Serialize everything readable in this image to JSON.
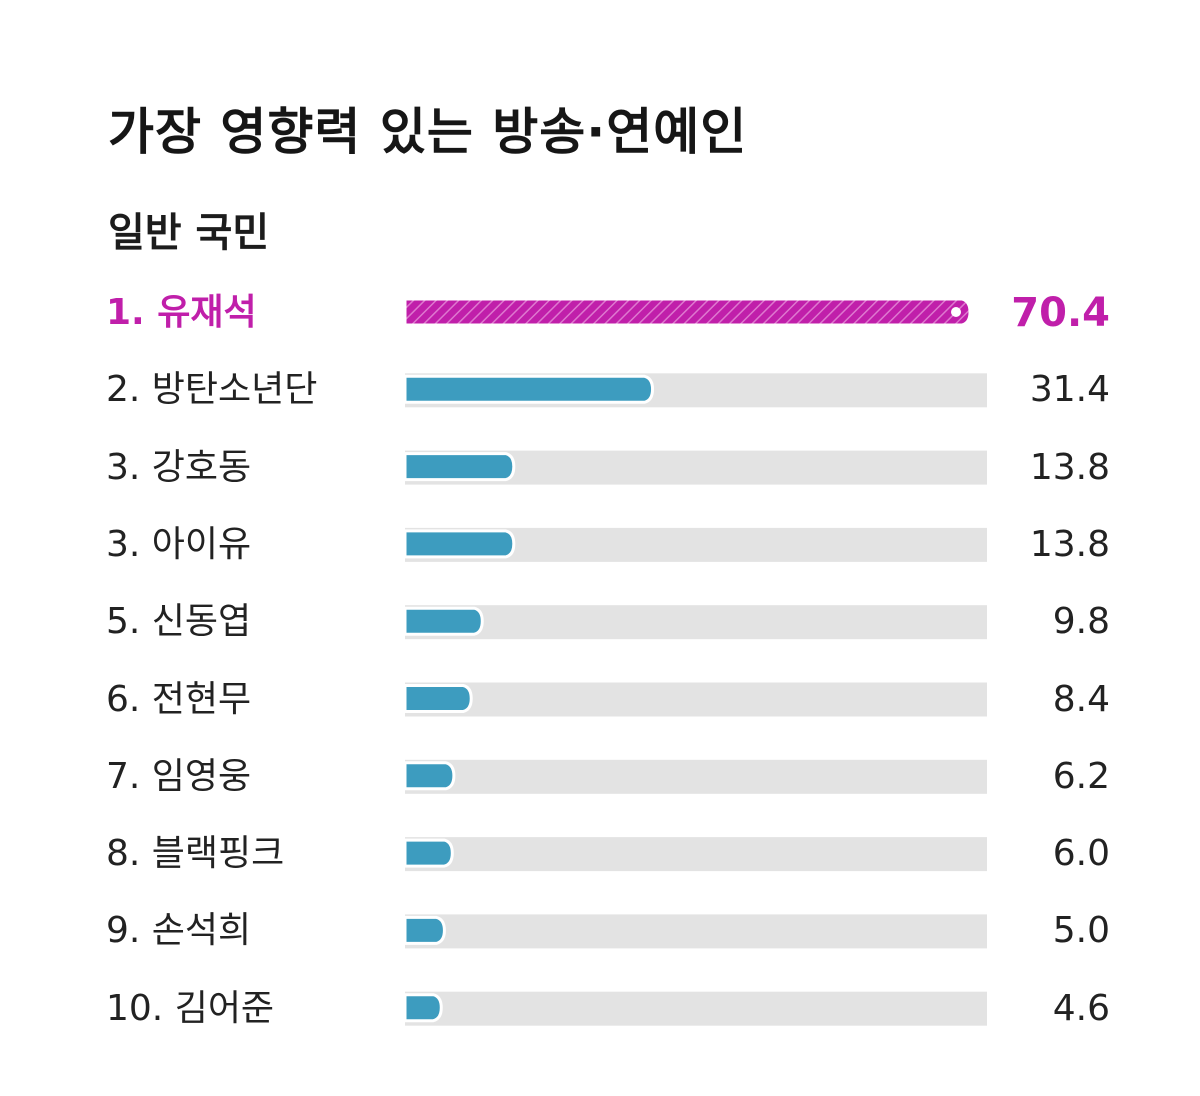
{
  "chart_data": {
    "type": "bar",
    "orientation": "horizontal",
    "title": "가장 영향력 있는 방송·연예인",
    "subtitle": "일반 국민",
    "categories": [
      "1. 유재석",
      "2. 방탄소년단",
      "3. 강호동",
      "3. 아이유",
      "5. 신동엽",
      "6. 전현무",
      "7. 임영웅",
      "8. 블랙핑크",
      "9. 손석희",
      "10. 김어준"
    ],
    "values": [
      70.4,
      31.4,
      13.8,
      13.8,
      9.8,
      8.4,
      6.2,
      6.0,
      5.0,
      4.6
    ],
    "value_labels": [
      "70.4",
      "31.4",
      "13.8",
      "13.8",
      "9.8",
      "8.4",
      "6.2",
      "6.0",
      "5.0",
      "4.6"
    ],
    "xlim": [
      0,
      70.4
    ],
    "highlight_index": 0,
    "grid": false,
    "legend": "none"
  },
  "colors": {
    "highlight": "#c01faa",
    "bar": "#3d9cbf",
    "track": "#e3e3e3",
    "text": "#222222"
  }
}
